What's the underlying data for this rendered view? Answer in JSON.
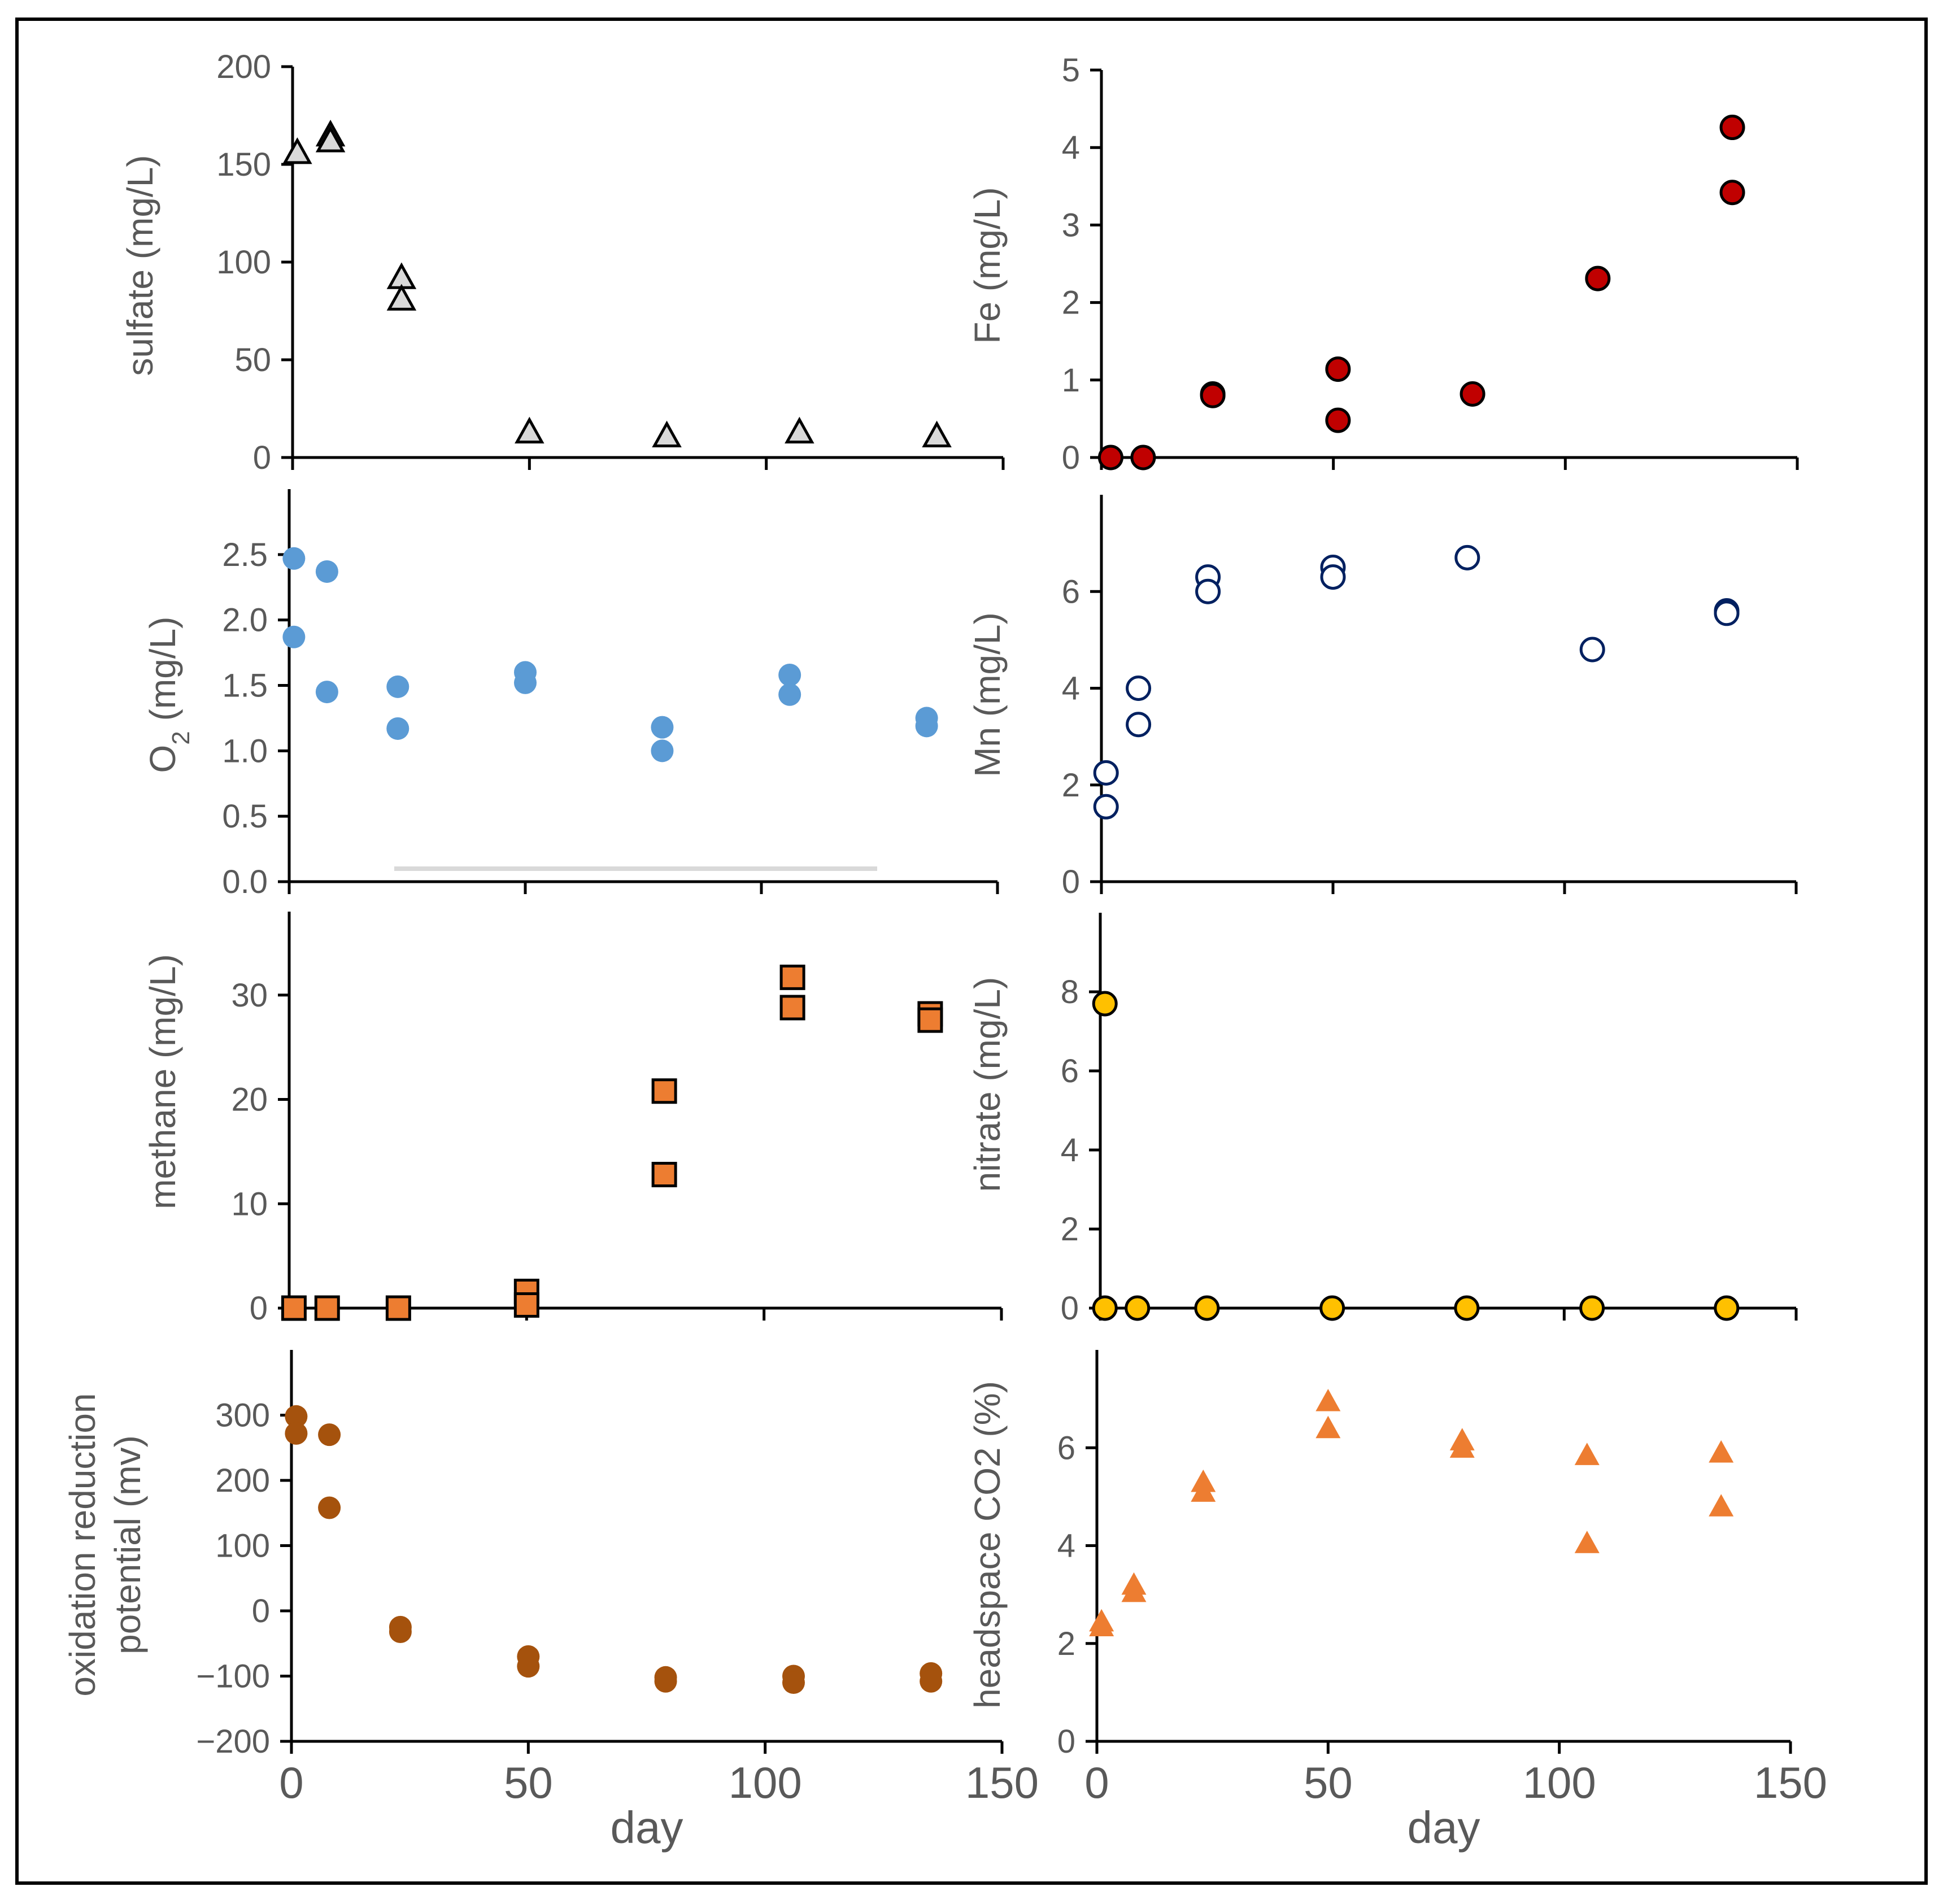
{
  "chart_data": [
    {
      "id": "sulfate",
      "type": "scatter",
      "ylabel": "sulfate (mg/L)",
      "xlim": [
        0,
        150
      ],
      "ylim": [
        0,
        200
      ],
      "yticks": [
        "0",
        "50",
        "100",
        "150",
        "200"
      ],
      "marker": "triangle-open",
      "color": "#000000",
      "fill": "#d9d9d9",
      "points": [
        [
          1,
          156
        ],
        [
          8,
          165
        ],
        [
          8,
          162
        ],
        [
          23,
          92
        ],
        [
          23,
          81
        ],
        [
          50,
          13
        ],
        [
          79,
          11
        ],
        [
          107,
          13
        ],
        [
          136,
          11
        ]
      ]
    },
    {
      "id": "fe",
      "type": "scatter",
      "ylabel": "Fe (mg/L)",
      "xlim": [
        0,
        150
      ],
      "ylim": [
        0,
        5
      ],
      "yticks": [
        "0",
        "1",
        "2",
        "3",
        "4",
        "5"
      ],
      "marker": "circle",
      "color": "#000000",
      "fill": "#c00000",
      "points": [
        [
          2,
          0
        ],
        [
          9,
          0
        ],
        [
          24,
          0.82
        ],
        [
          24,
          0.8
        ],
        [
          51,
          1.14
        ],
        [
          51,
          0.48
        ],
        [
          80,
          0.82
        ],
        [
          107,
          2.31
        ],
        [
          136,
          4.26
        ],
        [
          136,
          3.42
        ]
      ]
    },
    {
      "id": "o2",
      "type": "scatter",
      "ylabel": "O",
      "ylabel_sub": "2",
      "ylabel_rest": " (mg/L)",
      "xlim": [
        0,
        150
      ],
      "ylim": [
        0,
        3.0
      ],
      "yticks": [
        "0.0",
        "0.5",
        "1.0",
        "1.5",
        "2.0",
        "2.5"
      ],
      "marker": "circle",
      "color": "#5b9bd5",
      "fill": "#5b9bd5",
      "points": [
        [
          1,
          2.47
        ],
        [
          1,
          1.87
        ],
        [
          8,
          2.37
        ],
        [
          8,
          1.45
        ],
        [
          23,
          1.49
        ],
        [
          23,
          1.17
        ],
        [
          50,
          1.6
        ],
        [
          50,
          1.52
        ],
        [
          79,
          1.18
        ],
        [
          79,
          1.0
        ],
        [
          106,
          1.58
        ],
        [
          106,
          1.43
        ],
        [
          135,
          1.25
        ],
        [
          135,
          1.19
        ]
      ]
    },
    {
      "id": "mn",
      "type": "scatter",
      "ylabel": "Mn (mg/L)",
      "xlim": [
        0,
        150
      ],
      "ylim": [
        0,
        8
      ],
      "yticks": [
        "0",
        "2",
        "4",
        "6"
      ],
      "marker": "circle-open",
      "color": "#002060",
      "fill": "#ffffff",
      "points": [
        [
          1,
          2.25
        ],
        [
          1,
          1.55
        ],
        [
          8,
          4.0
        ],
        [
          8,
          3.25
        ],
        [
          23,
          6.3
        ],
        [
          23,
          6.0
        ],
        [
          50,
          6.5
        ],
        [
          50,
          6.3
        ],
        [
          79,
          6.7
        ],
        [
          106,
          4.8
        ],
        [
          135,
          5.6
        ],
        [
          135,
          5.55
        ]
      ]
    },
    {
      "id": "methane",
      "type": "scatter",
      "ylabel": "methane (mg/L)",
      "xlim": [
        0,
        150
      ],
      "ylim": [
        0,
        38
      ],
      "yticks": [
        "0",
        "10",
        "20",
        "30"
      ],
      "marker": "square",
      "color": "#000000",
      "fill": "#ed7d31",
      "points": [
        [
          1,
          0
        ],
        [
          8,
          0
        ],
        [
          23,
          0
        ],
        [
          50,
          1.6
        ],
        [
          50,
          0.3
        ],
        [
          79,
          20.8
        ],
        [
          79,
          12.8
        ],
        [
          106,
          31.7
        ],
        [
          106,
          28.8
        ],
        [
          135,
          28.2
        ],
        [
          135,
          27.6
        ]
      ]
    },
    {
      "id": "nitrate",
      "type": "scatter",
      "ylabel": "nitrate (mg/L)",
      "xlim": [
        0,
        150
      ],
      "ylim": [
        0,
        10
      ],
      "yticks": [
        "0",
        "2",
        "4",
        "6",
        "8"
      ],
      "marker": "circle",
      "color": "#000000",
      "fill": "#ffc000",
      "points": [
        [
          1,
          7.7
        ],
        [
          1,
          0
        ],
        [
          8,
          0
        ],
        [
          23,
          0
        ],
        [
          50,
          0
        ],
        [
          79,
          0
        ],
        [
          106,
          0
        ],
        [
          135,
          0
        ]
      ]
    },
    {
      "id": "orp",
      "type": "scatter",
      "ylabel": "oxidation reduction",
      "ylabel2": "potential (mv)",
      "xlim": [
        0,
        150
      ],
      "ylim": [
        -200,
        400
      ],
      "yticks": [
        "−200",
        "−100",
        "0",
        "100",
        "200",
        "300"
      ],
      "xticks": [
        "0",
        "50",
        "100",
        "150"
      ],
      "xlabel": "day",
      "marker": "circle",
      "color": "#a5520d",
      "fill": "#a5520d",
      "points": [
        [
          1,
          298
        ],
        [
          1,
          272
        ],
        [
          8,
          270
        ],
        [
          8,
          158
        ],
        [
          23,
          -25
        ],
        [
          23,
          -32
        ],
        [
          50,
          -70
        ],
        [
          50,
          -85
        ],
        [
          79,
          -102
        ],
        [
          79,
          -108
        ],
        [
          106,
          -100
        ],
        [
          106,
          -110
        ],
        [
          135,
          -96
        ],
        [
          135,
          -108
        ]
      ]
    },
    {
      "id": "co2",
      "type": "scatter",
      "ylabel": "headspace CO2 (%)",
      "xlim": [
        0,
        150
      ],
      "ylim": [
        0,
        8
      ],
      "yticks": [
        "0",
        "2",
        "4",
        "6"
      ],
      "xticks": [
        "0",
        "50",
        "100",
        "150"
      ],
      "xlabel": "day",
      "marker": "triangle",
      "color": "#ed7d31",
      "fill": "#ed7d31",
      "points": [
        [
          1,
          2.45
        ],
        [
          1,
          2.35
        ],
        [
          8,
          3.2
        ],
        [
          8,
          3.05
        ],
        [
          23,
          5.3
        ],
        [
          23,
          5.1
        ],
        [
          50,
          6.95
        ],
        [
          50,
          6.4
        ],
        [
          79,
          6.15
        ],
        [
          79,
          6.0
        ],
        [
          106,
          5.85
        ],
        [
          106,
          4.05
        ],
        [
          135,
          5.9
        ],
        [
          135,
          4.8
        ]
      ]
    }
  ]
}
